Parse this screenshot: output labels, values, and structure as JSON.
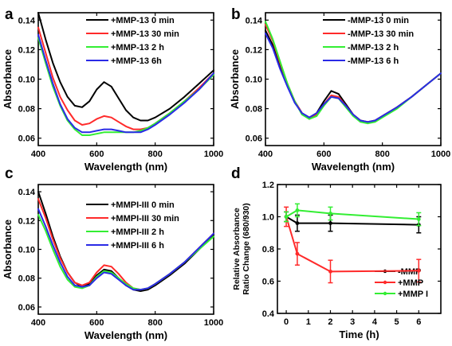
{
  "colors": {
    "black": "#000000",
    "red": "#ff2a2a",
    "green": "#33ee33",
    "blue": "#2a2ae6"
  },
  "chart_data": [
    {
      "panel": "a",
      "type": "line",
      "xlabel": "Wavelength (nm)",
      "ylabel": "Absorbance",
      "xlim": [
        400,
        1000
      ],
      "ylim": [
        0.055,
        0.145
      ],
      "xticks": [
        "400",
        "600",
        "800",
        "1000"
      ],
      "yticks": [
        "0.06",
        "0.08",
        "0.10",
        "0.12",
        "0.14"
      ],
      "legend_position": "top-right",
      "x": [
        400,
        425,
        450,
        475,
        500,
        525,
        550,
        575,
        600,
        625,
        650,
        675,
        700,
        725,
        750,
        775,
        800,
        850,
        900,
        950,
        1000
      ],
      "series": [
        {
          "name": "+MMP-13   0 min",
          "color": "#000000",
          "values": [
            0.145,
            0.127,
            0.111,
            0.098,
            0.088,
            0.082,
            0.081,
            0.085,
            0.093,
            0.098,
            0.095,
            0.087,
            0.079,
            0.074,
            0.072,
            0.072,
            0.074,
            0.08,
            0.088,
            0.097,
            0.106
          ]
        },
        {
          "name": "+MMP-13   30 min",
          "color": "#ff2a2a",
          "values": [
            0.135,
            0.118,
            0.101,
            0.088,
            0.079,
            0.072,
            0.069,
            0.07,
            0.073,
            0.075,
            0.074,
            0.071,
            0.068,
            0.066,
            0.066,
            0.067,
            0.07,
            0.077,
            0.085,
            0.094,
            0.104
          ]
        },
        {
          "name": "+MMP-13   2 h",
          "color": "#33ee33",
          "values": [
            0.128,
            0.111,
            0.095,
            0.082,
            0.072,
            0.066,
            0.062,
            0.062,
            0.063,
            0.064,
            0.064,
            0.064,
            0.064,
            0.064,
            0.065,
            0.067,
            0.07,
            0.077,
            0.085,
            0.093,
            0.103
          ]
        },
        {
          "name": "+MMP-13   6h",
          "color": "#2a2ae6",
          "values": [
            0.13,
            0.113,
            0.097,
            0.083,
            0.073,
            0.067,
            0.064,
            0.064,
            0.065,
            0.066,
            0.066,
            0.065,
            0.064,
            0.064,
            0.064,
            0.066,
            0.069,
            0.076,
            0.084,
            0.093,
            0.104
          ]
        }
      ]
    },
    {
      "panel": "b",
      "type": "line",
      "xlabel": "Wavelength (nm)",
      "ylabel": "Absorbance",
      "xlim": [
        400,
        1000
      ],
      "ylim": [
        0.055,
        0.145
      ],
      "xticks": [
        "400",
        "600",
        "800",
        "1000"
      ],
      "yticks": [
        "0.06",
        "0.08",
        "0.10",
        "0.12",
        "0.14"
      ],
      "legend_position": "top-right",
      "x": [
        400,
        425,
        450,
        475,
        500,
        525,
        550,
        575,
        600,
        625,
        650,
        675,
        700,
        725,
        750,
        775,
        800,
        850,
        900,
        950,
        1000
      ],
      "series": [
        {
          "name": "-MMP-13   0 min",
          "color": "#000000",
          "values": [
            0.133,
            0.123,
            0.109,
            0.096,
            0.085,
            0.077,
            0.074,
            0.077,
            0.085,
            0.092,
            0.09,
            0.083,
            0.076,
            0.072,
            0.071,
            0.072,
            0.075,
            0.081,
            0.088,
            0.096,
            0.104
          ]
        },
        {
          "name": "-MMP-13   30 min",
          "color": "#ff2a2a",
          "values": [
            0.137,
            0.126,
            0.111,
            0.097,
            0.085,
            0.077,
            0.073,
            0.076,
            0.083,
            0.089,
            0.088,
            0.082,
            0.076,
            0.072,
            0.071,
            0.072,
            0.075,
            0.081,
            0.088,
            0.096,
            0.104
          ]
        },
        {
          "name": "-MMP-13   2 h",
          "color": "#33ee33",
          "values": [
            0.139,
            0.127,
            0.112,
            0.097,
            0.085,
            0.076,
            0.073,
            0.075,
            0.082,
            0.088,
            0.087,
            0.081,
            0.075,
            0.071,
            0.07,
            0.071,
            0.074,
            0.08,
            0.088,
            0.096,
            0.104
          ]
        },
        {
          "name": "-MMP-13   6 h",
          "color": "#2a2ae6",
          "values": [
            0.131,
            0.121,
            0.107,
            0.095,
            0.084,
            0.077,
            0.074,
            0.077,
            0.083,
            0.088,
            0.087,
            0.082,
            0.076,
            0.072,
            0.071,
            0.072,
            0.075,
            0.081,
            0.088,
            0.096,
            0.104
          ]
        }
      ]
    },
    {
      "panel": "c",
      "type": "line",
      "xlabel": "Wavelength (nm)",
      "ylabel": "Absorbance",
      "xlim": [
        400,
        1000
      ],
      "ylim": [
        0.055,
        0.145
      ],
      "xticks": [
        "400",
        "600",
        "800",
        "1000"
      ],
      "yticks": [
        "0.06",
        "0.08",
        "0.10",
        "0.12",
        "0.14"
      ],
      "legend_position": "top-right",
      "x": [
        400,
        425,
        450,
        475,
        500,
        525,
        550,
        575,
        600,
        625,
        650,
        675,
        700,
        725,
        750,
        775,
        800,
        850,
        900,
        950,
        1000
      ],
      "series": [
        {
          "name": "+MMPI-III 0 min",
          "color": "#000000",
          "values": [
            0.14,
            0.125,
            0.109,
            0.095,
            0.084,
            0.077,
            0.074,
            0.076,
            0.082,
            0.086,
            0.085,
            0.08,
            0.075,
            0.072,
            0.071,
            0.072,
            0.075,
            0.082,
            0.09,
            0.1,
            0.11
          ]
        },
        {
          "name": "+MMPI-III 30 min",
          "color": "#ff2a2a",
          "values": [
            0.135,
            0.122,
            0.107,
            0.094,
            0.084,
            0.077,
            0.075,
            0.077,
            0.084,
            0.089,
            0.088,
            0.083,
            0.077,
            0.073,
            0.072,
            0.073,
            0.076,
            0.083,
            0.091,
            0.101,
            0.111
          ]
        },
        {
          "name": "+MMPI-III 2 h",
          "color": "#33ee33",
          "values": [
            0.124,
            0.113,
            0.1,
            0.088,
            0.079,
            0.074,
            0.073,
            0.075,
            0.081,
            0.085,
            0.084,
            0.08,
            0.076,
            0.073,
            0.072,
            0.073,
            0.076,
            0.083,
            0.091,
            0.1,
            0.109
          ]
        },
        {
          "name": "+MMPI-III 6 h",
          "color": "#2a2ae6",
          "values": [
            0.128,
            0.116,
            0.103,
            0.091,
            0.081,
            0.075,
            0.074,
            0.075,
            0.08,
            0.084,
            0.083,
            0.079,
            0.075,
            0.072,
            0.072,
            0.073,
            0.076,
            0.083,
            0.091,
            0.101,
            0.111
          ]
        }
      ]
    },
    {
      "panel": "d",
      "type": "line",
      "xlabel": "Time (h)",
      "ylabel_lines": [
        "Relative Absorbance",
        "Ratio Change (680/930)"
      ],
      "xlim": [
        -0.4,
        7
      ],
      "ylim": [
        0.4,
        1.2
      ],
      "xticks": [
        "0",
        "1",
        "2",
        "3",
        "4",
        "5",
        "6"
      ],
      "yticks": [
        "0.4",
        "0.6",
        "0.8",
        "1.0",
        "1.2"
      ],
      "legend_position": "bottom-right",
      "x": [
        0,
        0.5,
        2,
        6
      ],
      "series": [
        {
          "name": "-MMP",
          "color": "#000000",
          "values": [
            1.0,
            0.96,
            0.96,
            0.95
          ],
          "errors": [
            0.03,
            0.05,
            0.05,
            0.05
          ]
        },
        {
          "name": "+MMP",
          "color": "#ff2a2a",
          "values": [
            1.0,
            0.77,
            0.66,
            0.665
          ],
          "errors": [
            0.06,
            0.07,
            0.07,
            0.07
          ]
        },
        {
          "name": "+MMP I",
          "color": "#33ee33",
          "values": [
            1.0,
            1.04,
            1.02,
            0.985
          ],
          "errors": [
            0.03,
            0.04,
            0.04,
            0.04
          ]
        }
      ]
    }
  ]
}
